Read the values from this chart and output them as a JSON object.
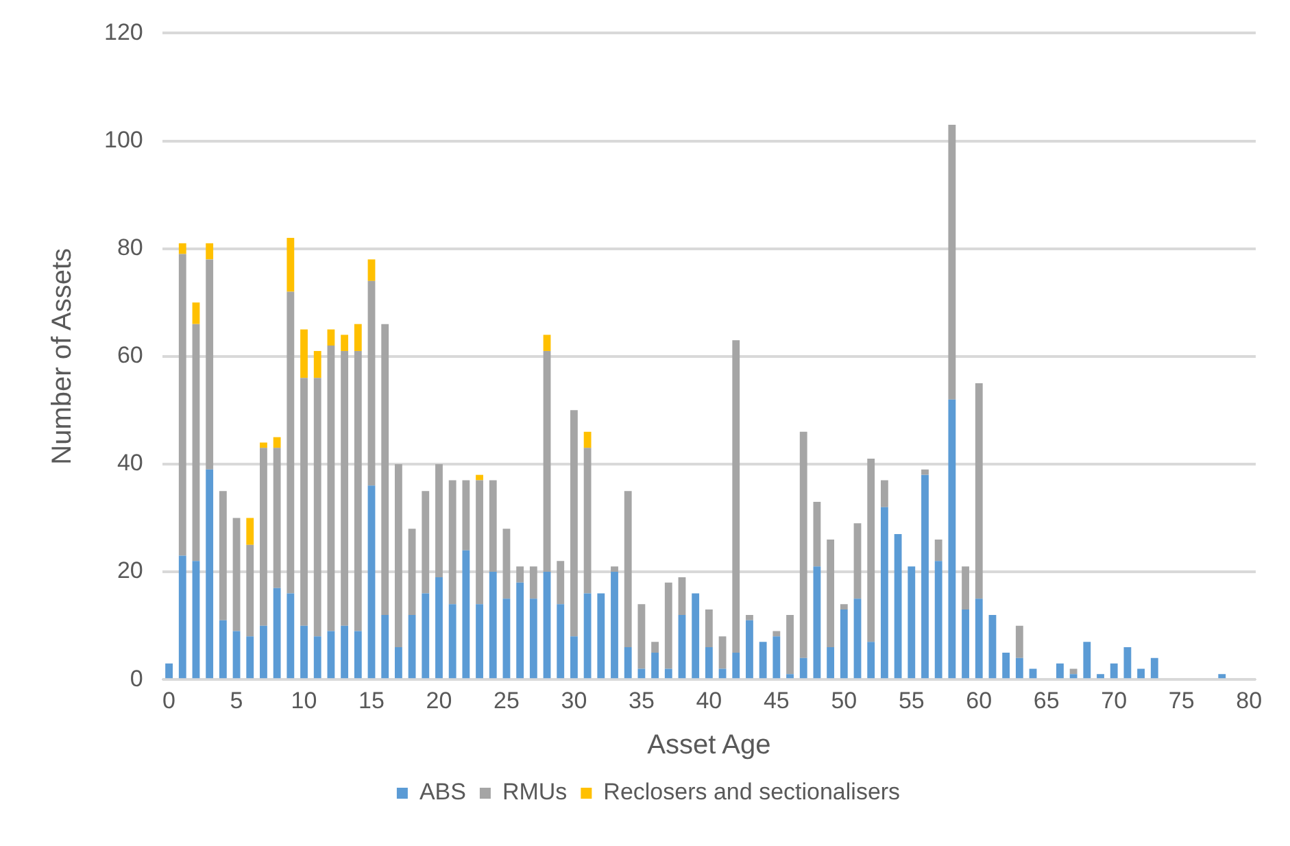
{
  "chart_data": {
    "type": "bar",
    "stacked": true,
    "xlabel": "Asset Age",
    "ylabel": "Number of Assets",
    "categories": [
      "0",
      null,
      null,
      null,
      null,
      "5",
      null,
      null,
      null,
      null,
      "10",
      null,
      null,
      null,
      null,
      "15",
      null,
      null,
      null,
      null,
      "20",
      null,
      null,
      null,
      null,
      "25",
      null,
      null,
      null,
      null,
      "30",
      null,
      null,
      null,
      null,
      "35",
      null,
      null,
      null,
      null,
      "40",
      null,
      null,
      null,
      null,
      "45",
      null,
      null,
      null,
      null,
      "50",
      null,
      null,
      null,
      null,
      "55",
      null,
      null,
      null,
      null,
      "60",
      null,
      null,
      null,
      null,
      "65",
      null,
      null,
      null,
      null,
      "70",
      null,
      null,
      null,
      null,
      "75",
      null,
      null,
      null,
      null,
      "80"
    ],
    "series": [
      {
        "name": "ABS",
        "color": "#5b9bd5",
        "values": [
          3,
          23,
          22,
          39,
          11,
          9,
          8,
          10,
          17,
          16,
          10,
          8,
          9,
          10,
          9,
          36,
          12,
          6,
          12,
          16,
          19,
          14,
          24,
          14,
          20,
          15,
          18,
          15,
          20,
          14,
          8,
          16,
          16,
          20,
          6,
          2,
          5,
          2,
          12,
          16,
          6,
          2,
          5,
          11,
          7,
          8,
          1,
          4,
          21,
          6,
          13,
          15,
          7,
          32,
          27,
          21,
          38,
          22,
          52,
          13,
          15,
          12,
          5,
          4,
          2,
          0,
          3,
          1,
          7,
          1,
          3,
          6,
          2,
          4,
          0,
          0,
          0,
          0,
          1,
          0,
          0
        ]
      },
      {
        "name": "RMUs",
        "color": "#a5a5a5",
        "values": [
          0,
          56,
          44,
          39,
          24,
          21,
          17,
          33,
          26,
          56,
          46,
          48,
          53,
          51,
          52,
          38,
          54,
          34,
          16,
          19,
          21,
          23,
          13,
          23,
          17,
          13,
          3,
          6,
          41,
          8,
          42,
          27,
          0,
          1,
          29,
          12,
          2,
          16,
          7,
          0,
          7,
          6,
          58,
          1,
          0,
          1,
          11,
          42,
          12,
          20,
          1,
          14,
          34,
          5,
          0,
          0,
          1,
          4,
          51,
          8,
          40,
          0,
          0,
          6,
          0,
          0,
          0,
          1,
          0,
          0,
          0,
          0,
          0,
          0,
          0,
          0,
          0,
          0,
          0,
          0,
          0
        ]
      },
      {
        "name": "Reclosers and sectionalisers",
        "color": "#ffc000",
        "values": [
          0,
          2,
          4,
          3,
          0,
          0,
          5,
          1,
          2,
          10,
          9,
          5,
          3,
          3,
          5,
          4,
          0,
          0,
          0,
          0,
          0,
          0,
          0,
          1,
          0,
          0,
          0,
          0,
          3,
          0,
          0,
          3,
          0,
          0,
          0,
          0,
          0,
          0,
          0,
          0,
          0,
          0,
          0,
          0,
          0,
          0,
          0,
          0,
          0,
          0,
          0,
          0,
          0,
          0,
          0,
          0,
          0,
          0,
          0,
          0,
          0,
          0,
          0,
          0,
          0,
          0,
          0,
          0,
          0,
          0,
          0,
          0,
          0,
          0,
          0,
          0,
          0,
          0,
          0,
          0,
          0
        ]
      }
    ],
    "ylim": [
      0,
      120
    ],
    "yticks": [
      0,
      20,
      40,
      60,
      80,
      100,
      120
    ],
    "grid": "y",
    "legend": "bottom"
  }
}
